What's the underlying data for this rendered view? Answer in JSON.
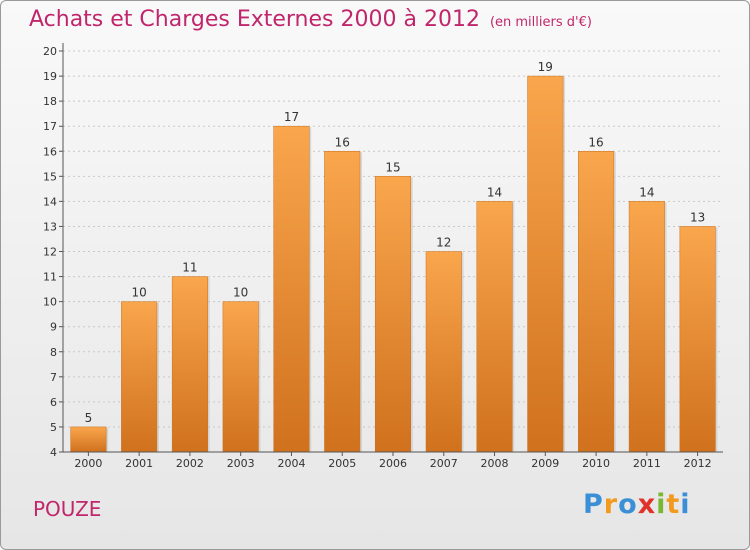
{
  "chart_data": {
    "type": "bar",
    "title": "Achats et Charges Externes 2000 à 2012",
    "subtitle": "(en milliers d'€)",
    "categories": [
      "2000",
      "2001",
      "2002",
      "2003",
      "2004",
      "2005",
      "2006",
      "2007",
      "2008",
      "2009",
      "2010",
      "2011",
      "2012"
    ],
    "values": [
      5,
      10,
      11,
      10,
      17,
      16,
      15,
      12,
      14,
      19,
      16,
      14,
      13
    ],
    "ylim": [
      4,
      20
    ],
    "yticks": [
      4,
      5,
      6,
      7,
      8,
      9,
      10,
      11,
      12,
      13,
      14,
      15,
      16,
      17,
      18,
      19,
      20
    ],
    "grid": true,
    "bar_color_top": "#f9a64d",
    "bar_color_bottom": "#d0711d"
  },
  "commune": "POUZE",
  "logo": {
    "letters": [
      "P",
      "r",
      "o",
      "x",
      "i",
      "t",
      "i"
    ],
    "colors": [
      "#3a8fd6",
      "#f29a1e",
      "#3a8fd6",
      "#e0322a",
      "#7ab833",
      "#f29a1e",
      "#3a8fd6"
    ]
  }
}
